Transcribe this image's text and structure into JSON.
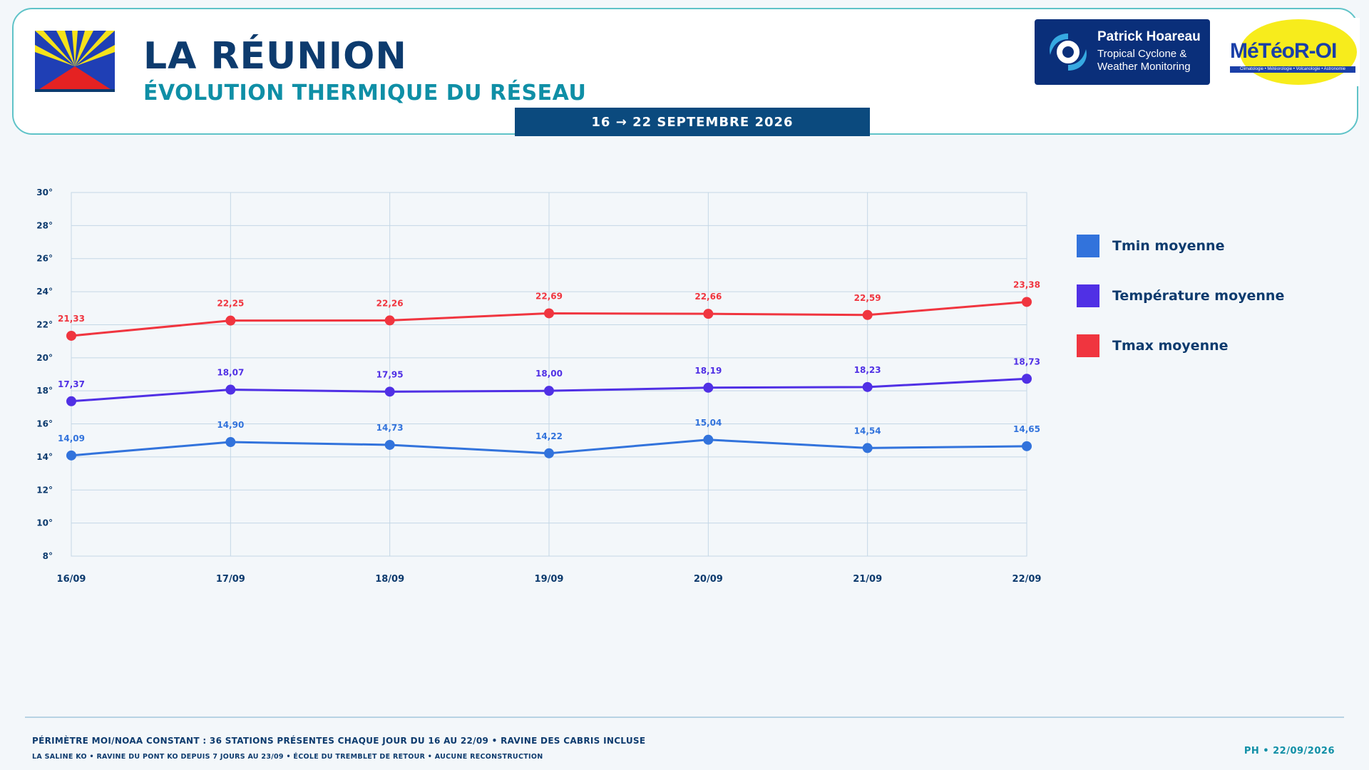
{
  "header": {
    "title": "LA RÉUNION",
    "subtitle": "ÉVOLUTION THERMIQUE DU RÉSEAU",
    "date_range": "16 → 22 SEPTEMBRE 2026",
    "logo_ph": {
      "name": "Patrick Hoareau",
      "line1": "Tropical Cyclone &",
      "line2": "Weather Monitoring"
    },
    "logo_meteo": {
      "text": "MéTéoR-OI",
      "sub": "Climatologie • Météorologie • Volcanologie • Astronomie"
    }
  },
  "chart_data": {
    "type": "line",
    "title": "",
    "xlabel": "",
    "ylabel": "",
    "categories": [
      "16/09",
      "17/09",
      "18/09",
      "19/09",
      "20/09",
      "21/09",
      "22/09"
    ],
    "ylim": [
      8,
      30
    ],
    "yticks": [
      8,
      10,
      12,
      14,
      16,
      18,
      20,
      22,
      24,
      26,
      28,
      30
    ],
    "ytick_suffix": "°",
    "grid": true,
    "legend_position": "right",
    "series": [
      {
        "name": "Tmin moyenne",
        "color": "#3273dc",
        "values": [
          14.09,
          14.9,
          14.73,
          14.22,
          15.04,
          14.54,
          14.65
        ],
        "labels": [
          "14,09",
          "14,90",
          "14,73",
          "14,22",
          "15,04",
          "14,54",
          "14,65"
        ]
      },
      {
        "name": "Température moyenne",
        "color": "#5030e5",
        "values": [
          17.37,
          18.07,
          17.95,
          18.0,
          18.19,
          18.23,
          18.73
        ],
        "labels": [
          "17,37",
          "18,07",
          "17,95",
          "18,00",
          "18,19",
          "18,23",
          "18,73"
        ]
      },
      {
        "name": "Tmax moyenne",
        "color": "#f0353f",
        "values": [
          21.33,
          22.25,
          22.26,
          22.69,
          22.66,
          22.59,
          23.38
        ],
        "labels": [
          "21,33",
          "22,25",
          "22,26",
          "22,69",
          "22,66",
          "22,59",
          "23,38"
        ]
      }
    ]
  },
  "footer": {
    "line1": "PÉRIMÈTRE MOI/NOAA CONSTANT : 36 STATIONS PRÉSENTES CHAQUE JOUR DU 16 AU 22/09 • RAVINE DES CABRIS INCLUSE",
    "line2": "LA SALINE KO • RAVINE DU PONT KO DEPUIS 7 JOURS AU 23/09 • ÉCOLE DU TREMBLET DE RETOUR • AUCUNE RECONSTRUCTION",
    "signature": "PH • 22/09/2026"
  }
}
